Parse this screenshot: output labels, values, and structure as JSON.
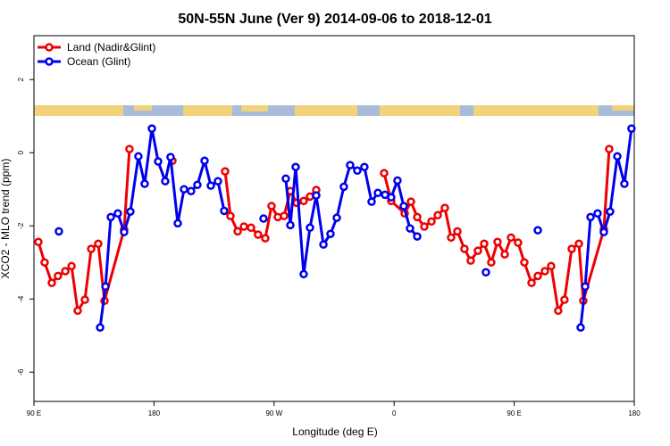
{
  "chart_data": {
    "type": "line",
    "title": "50N-55N June (Ver 9)   2014-09-06 to 2018-12-01",
    "x_label": "Longitude (deg E)",
    "y_label": "XCO2 - MLO trend (ppm)",
    "xlim": [
      90,
      540
    ],
    "xticks": [
      {
        "value": 90,
        "label": "90 E"
      },
      180,
      {
        "value": 270,
        "label": "90 W"
      },
      {
        "value": 360,
        "label": "0"
      },
      {
        "value": 450,
        "label": "90 E"
      },
      {
        "value": 540,
        "label": "180"
      }
    ],
    "ylim": [
      -6.8,
      3.2
    ],
    "yticks": [
      -6,
      -4,
      -2,
      0,
      2
    ],
    "legend": "top-left",
    "series": [
      {
        "name": "Land (Nadir&Glint)",
        "color": "#ee0000",
        "x": [
          93.3,
          98,
          103.4,
          108,
          113.5,
          118.2,
          122.8,
          128.2,
          132.9,
          138.2,
          142.9,
          157.6,
          161.6,
          175,
          193.8,
          210,
          233.3,
          237.3,
          242.7,
          247.4,
          252.7,
          258,
          263.4,
          268.1,
          272.8,
          277.5,
          282.2,
          286.9,
          292.2,
          296.9,
          301.6,
          330,
          352.5,
          357.8,
          367.9,
          372.6,
          377.3,
          382.6,
          388,
          392.7,
          398,
          402.7,
          407.4,
          412.7,
          417.4,
          422.8,
          427.5,
          432.8,
          437.5,
          442.9,
          447.6,
          452.9,
          457.6,
          463,
          467.7,
          473,
          477.7,
          483,
          487.7,
          493.1,
          498.5,
          501.8,
          517.2,
          521.2
        ],
        "values": [
          -2.44,
          -3.0,
          -3.56,
          -3.37,
          -3.24,
          -3.1,
          -4.32,
          -4.02,
          -2.63,
          -2.49,
          -4.05,
          -2.1,
          0.1,
          null,
          -0.22,
          null,
          -0.51,
          -1.73,
          -2.15,
          -2.02,
          -2.05,
          -2.24,
          -2.34,
          -1.46,
          -1.76,
          -1.73,
          -1.05,
          -1.37,
          -1.32,
          -1.2,
          -1.02,
          null,
          -0.56,
          -1.32,
          -1.66,
          -1.34,
          -1.76,
          -2.02,
          -1.88,
          -1.71,
          -1.51,
          -2.32,
          -2.15,
          -2.63,
          -2.95,
          -2.68,
          -2.49,
          -3.0,
          -2.44,
          -2.78,
          -2.32,
          -2.46,
          -3.0,
          -3.56,
          -3.37,
          -3.24,
          -3.1,
          -4.32,
          -4.02,
          -2.63,
          -2.49,
          -4.05,
          -2.1,
          0.1
        ]
      },
      {
        "name": "Ocean (Glint)",
        "color": "#0000ee",
        "x": [
          108.7,
          125,
          139.6,
          143.6,
          147.6,
          152.9,
          157.6,
          162.3,
          168.3,
          173,
          178.4,
          183.1,
          188.4,
          192.4,
          197.8,
          202.5,
          207.8,
          212.5,
          217.9,
          222.6,
          227.9,
          232.6,
          250,
          262.1,
          270,
          278.8,
          282.2,
          286.2,
          292.2,
          296.9,
          301.6,
          307,
          312.3,
          317,
          322.3,
          327,
          332.4,
          337.7,
          343.1,
          347.8,
          353.2,
          357.8,
          362.5,
          367.2,
          371.9,
          377.3,
          400,
          428.8,
          450,
          467.7,
          485,
          499.8,
          503.2,
          507.2,
          512.5,
          517.2,
          521.9,
          527.3,
          532.6,
          537.9
        ],
        "values": [
          -2.15,
          null,
          -4.78,
          -3.66,
          -1.76,
          -1.66,
          -2.17,
          -1.61,
          -0.1,
          -0.85,
          0.66,
          -0.24,
          -0.78,
          -0.12,
          -1.93,
          -1.0,
          -1.05,
          -0.88,
          -0.22,
          -0.9,
          -0.78,
          -1.59,
          null,
          -1.8,
          null,
          -0.71,
          -1.98,
          -0.39,
          -3.32,
          -2.05,
          -1.17,
          -2.51,
          -2.22,
          -1.78,
          -0.93,
          -0.34,
          -0.49,
          -0.39,
          -1.34,
          -1.1,
          -1.15,
          -1.22,
          -0.76,
          -1.46,
          -2.07,
          -2.29,
          null,
          -3.27,
          null,
          -2.12,
          null,
          -4.78,
          -3.66,
          -1.76,
          -1.66,
          -2.17,
          -1.61,
          -0.1,
          -0.85,
          0.66
        ]
      }
    ]
  }
}
